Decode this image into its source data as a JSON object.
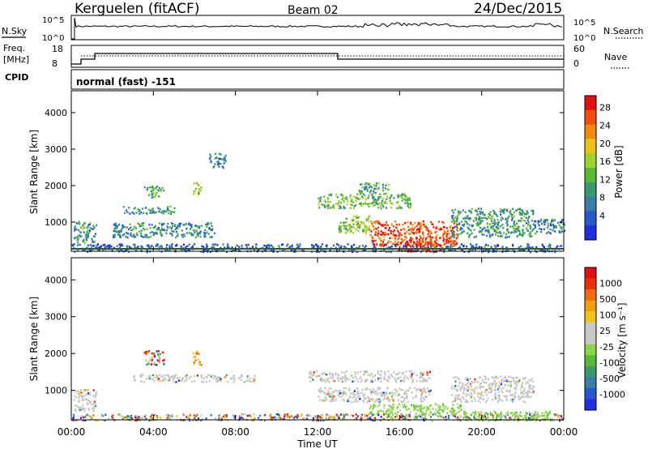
{
  "header": {
    "station": "Kerguelen (fitACF)",
    "beam": "Beam 02",
    "date": "24/Dec/2015"
  },
  "noise_panel": {
    "left_label": "N.Sky",
    "right_label": "N.Search",
    "left_ticks": [
      "10^5",
      "10^0"
    ],
    "right_ticks": [
      "10^5",
      "10^0"
    ]
  },
  "freq_panel": {
    "left_label_line1": "Freq.",
    "left_label_line2": "[MHz]",
    "left_ticks": [
      "18",
      "8"
    ],
    "right_label": "Nave",
    "right_ticks": [
      "60",
      "0"
    ],
    "cpid_label": "CPID",
    "cpid_value": "normal (fast) -151"
  },
  "colors": {
    "power": [
      "#1f2fe0",
      "#2b57c9",
      "#3a7ea8",
      "#3a9a6e",
      "#5bb83a",
      "#9fd22c",
      "#e8c41a",
      "#f08a10",
      "#f04e10",
      "#e01010"
    ],
    "velocity": [
      "#1f2fe0",
      "#2b57c9",
      "#3a7ea8",
      "#3a9a6e",
      "#5bb83a",
      "#8ad44a",
      "#c8c8c8",
      "#c8c8c8",
      "#f0c41a",
      "#f0a010",
      "#f06a10",
      "#e83010",
      "#e01010"
    ]
  },
  "chart_data": [
    {
      "type": "heatmap",
      "name": "power",
      "ylabel": "Slant Range [km]",
      "yticks": [
        "4000",
        "3000",
        "2000",
        "1000"
      ],
      "ylim": [
        200,
        4600
      ],
      "xlim": [
        0,
        24
      ],
      "colorbar_label": "Power [dB]",
      "colorbar_ticks": [
        "28",
        "24",
        "20",
        "16",
        "12",
        "8",
        "4"
      ],
      "colorbar_range": [
        0,
        30
      ],
      "regions": [
        {
          "t0": 0.0,
          "t1": 24.0,
          "r0": 200,
          "r1": 420,
          "level": 0.15
        },
        {
          "t0": 0.1,
          "t1": 1.2,
          "r0": 450,
          "r1": 1050,
          "level": 0.35
        },
        {
          "t0": 2.5,
          "t1": 5.0,
          "r0": 1250,
          "r1": 1450,
          "level": 0.3
        },
        {
          "t0": 3.5,
          "t1": 4.5,
          "r0": 1700,
          "r1": 2000,
          "level": 0.45
        },
        {
          "t0": 5.9,
          "t1": 6.3,
          "r0": 1700,
          "r1": 2100,
          "level": 0.55
        },
        {
          "t0": 2.0,
          "t1": 7.0,
          "r0": 600,
          "r1": 1000,
          "level": 0.3
        },
        {
          "t0": 6.7,
          "t1": 7.5,
          "r0": 2500,
          "r1": 2900,
          "level": 0.25
        },
        {
          "t0": 12.0,
          "t1": 16.5,
          "r0": 1400,
          "r1": 1800,
          "level": 0.45
        },
        {
          "t0": 14.0,
          "t1": 15.5,
          "r0": 1800,
          "r1": 2100,
          "level": 0.4
        },
        {
          "t0": 13.0,
          "t1": 14.5,
          "r0": 700,
          "r1": 1200,
          "level": 0.5
        },
        {
          "t0": 14.5,
          "t1": 18.8,
          "r0": 350,
          "r1": 1050,
          "level": 0.85
        },
        {
          "t0": 16.0,
          "t1": 18.0,
          "r0": 200,
          "r1": 500,
          "level": 0.95
        },
        {
          "t0": 18.5,
          "t1": 22.5,
          "r0": 600,
          "r1": 1400,
          "level": 0.35
        },
        {
          "t0": 22.5,
          "t1": 24.0,
          "r0": 700,
          "r1": 1100,
          "level": 0.25
        }
      ]
    },
    {
      "type": "heatmap",
      "name": "velocity",
      "xlabel": "Time UT",
      "ylabel": "Slant Range [km]",
      "yticks": [
        "4000",
        "3000",
        "2000",
        "1000"
      ],
      "ylim": [
        200,
        4600
      ],
      "xlim": [
        0,
        24
      ],
      "xticks": [
        "00:00",
        "04:00",
        "08:00",
        "12:00",
        "16:00",
        "20:00",
        "00:00"
      ],
      "colorbar_label": "Velocity [m s⁻¹]",
      "colorbar_ticks": [
        "1000",
        "500",
        "100",
        "25",
        "-25",
        "-100",
        "-500",
        "-1000"
      ],
      "regions": [
        {
          "t0": 0.0,
          "t1": 24.0,
          "r0": 200,
          "r1": 380,
          "level": "mixed"
        },
        {
          "t0": 0.1,
          "t1": 1.2,
          "r0": 450,
          "r1": 1050,
          "level": "grey"
        },
        {
          "t0": 3.5,
          "t1": 4.5,
          "r0": 1700,
          "r1": 2100,
          "level": "mixed"
        },
        {
          "t0": 5.9,
          "t1": 6.3,
          "r0": 1700,
          "r1": 2100,
          "level": "orange"
        },
        {
          "t0": 3.0,
          "t1": 9.0,
          "r0": 1250,
          "r1": 1450,
          "level": "grey"
        },
        {
          "t0": 11.5,
          "t1": 17.5,
          "r0": 1250,
          "r1": 1550,
          "level": "grey"
        },
        {
          "t0": 12.0,
          "t1": 17.5,
          "r0": 700,
          "r1": 1100,
          "level": "grey"
        },
        {
          "t0": 14.5,
          "t1": 19.0,
          "r0": 350,
          "r1": 650,
          "level": "green"
        },
        {
          "t0": 19.0,
          "t1": 23.5,
          "r0": 200,
          "r1": 450,
          "level": "green"
        },
        {
          "t0": 18.5,
          "t1": 22.5,
          "r0": 700,
          "r1": 1400,
          "level": "grey"
        }
      ]
    }
  ]
}
